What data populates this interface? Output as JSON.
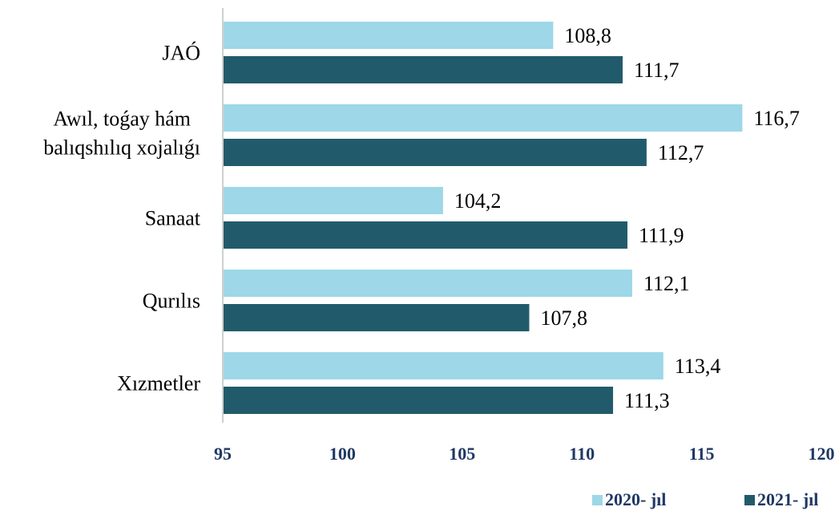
{
  "chart_data": {
    "type": "bar",
    "orientation": "horizontal",
    "categories": [
      [
        "JAÓ"
      ],
      [
        "Awıl, toǵay hám",
        "balıqshılıq xojalıǵı"
      ],
      [
        "Sanaat"
      ],
      [
        "Qurılıs"
      ],
      [
        "Xızmetler"
      ]
    ],
    "series": [
      {
        "name": "2020- jıl",
        "color": "#9DD7E8",
        "values": [
          108.8,
          116.7,
          104.2,
          112.1,
          113.4
        ],
        "labels": [
          "108,8",
          "116,7",
          "104,2",
          "112,1",
          "113,4"
        ]
      },
      {
        "name": "2021- jıl",
        "color": "#215B6B",
        "values": [
          111.7,
          112.7,
          111.9,
          107.8,
          111.3
        ],
        "labels": [
          "111,7",
          "112,7",
          "111,9",
          "107,8",
          "111,3"
        ]
      }
    ],
    "xlim": [
      95,
      120
    ],
    "ticks": [
      95,
      100,
      105,
      110,
      115,
      120
    ],
    "tick_color": "#1F3864",
    "grid": false,
    "legend_position": "bottom-right"
  }
}
